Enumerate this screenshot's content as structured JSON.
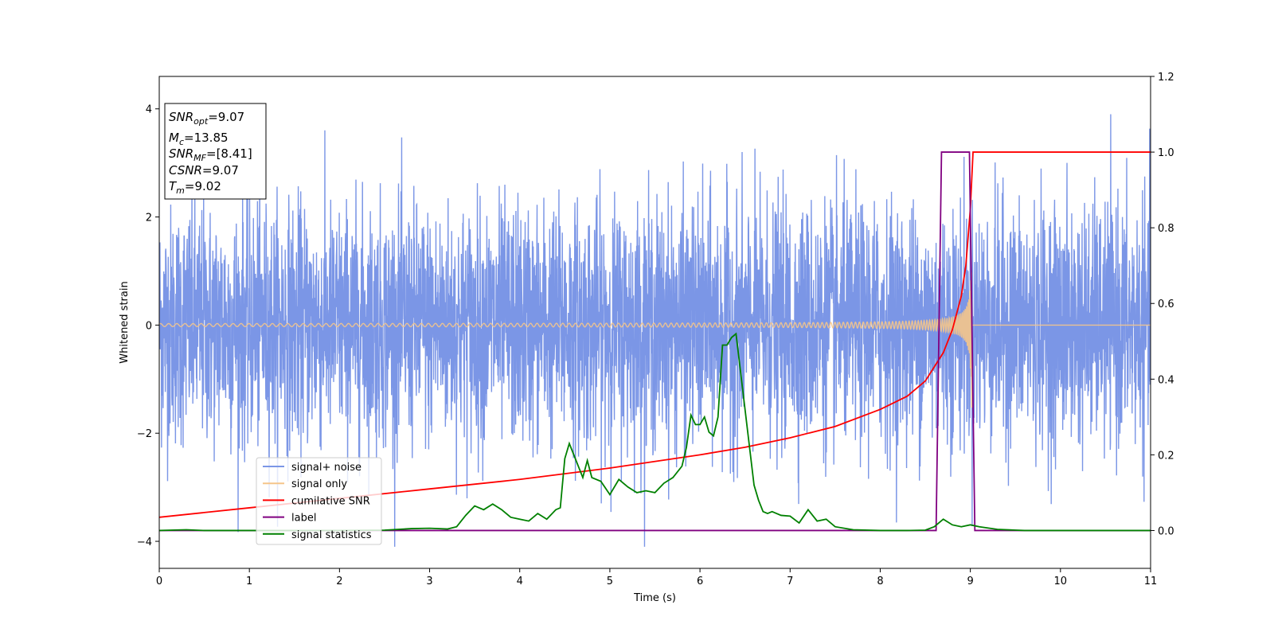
{
  "chart_data": {
    "type": "line",
    "xlabel": "Time (s)",
    "ylabel": "Whitened strain",
    "xlim": [
      0,
      11
    ],
    "ylim": [
      -4.5,
      4.6
    ],
    "y2lim": [
      -0.1,
      1.2
    ],
    "x_ticks": [
      0,
      1,
      2,
      3,
      4,
      5,
      6,
      7,
      8,
      9,
      10,
      11
    ],
    "x_tick_labels": [
      "0",
      "1",
      "2",
      "3",
      "4",
      "5",
      "6",
      "7",
      "8",
      "9",
      "10",
      "11"
    ],
    "y_ticks": [
      -4,
      -2,
      0,
      2,
      4
    ],
    "y_tick_labels": [
      "−4",
      "−2",
      "0",
      "2",
      "4"
    ],
    "y2_ticks": [
      0.0,
      0.2,
      0.4,
      0.6,
      0.8,
      1.0,
      1.2
    ],
    "y2_tick_labels": [
      "0.0",
      "0.2",
      "0.4",
      "0.6",
      "0.8",
      "1.0",
      "1.2"
    ],
    "grid": false,
    "legend_position": "bottom-left",
    "info_box": {
      "position": "top-left",
      "lines": [
        {
          "sym": "SNR",
          "sub": "opt",
          "rest": "=9.07"
        },
        {
          "sym": "M",
          "sub": "c",
          "rest": "=13.85"
        },
        {
          "sym": "SNR",
          "sub": "MF",
          "rest": "=[8.41]"
        },
        {
          "sym": "CSNR",
          "sub": "",
          "rest": "=9.07"
        },
        {
          "sym": "T",
          "sub": "m",
          "rest": "=9.02"
        }
      ]
    },
    "series": [
      {
        "name": "signal+ noise",
        "axis": "left",
        "color": "#7b96e6",
        "description_values": {
          "std": 1.1,
          "typical_peak": 2.8,
          "max_peak": 3.9,
          "min_trough": -4.1
        }
      },
      {
        "name": "signal only",
        "axis": "left",
        "color": "#f5c58a",
        "chirp": {
          "start": 0,
          "end": 9.02,
          "f0": 8.0,
          "amp_start": 0.02,
          "amp_end_envelope_at_9.0": 1.3
        }
      },
      {
        "name": "cumilative SNR",
        "axis": "right",
        "color": "#ff0000",
        "x": [
          0,
          1,
          2,
          3,
          4,
          5,
          6,
          6.5,
          7,
          7.5,
          8,
          8.3,
          8.5,
          8.7,
          8.8,
          8.9,
          8.95,
          9.0,
          9.02,
          9.03,
          11
        ],
        "y": [
          0.035,
          0.06,
          0.085,
          0.11,
          0.135,
          0.165,
          0.2,
          0.22,
          0.245,
          0.275,
          0.32,
          0.355,
          0.395,
          0.47,
          0.53,
          0.62,
          0.7,
          0.85,
          0.95,
          1.0,
          1.0
        ]
      },
      {
        "name": "label",
        "axis": "right",
        "color": "#800080",
        "x": [
          0,
          8.62,
          8.68,
          8.99,
          9.05,
          11
        ],
        "y": [
          0,
          0,
          1,
          1,
          0,
          0
        ]
      },
      {
        "name": "signal statistics",
        "axis": "right",
        "color": "#008000",
        "x": [
          0,
          0.3,
          0.5,
          1,
          2,
          2.5,
          2.8,
          3.0,
          3.2,
          3.3,
          3.4,
          3.5,
          3.6,
          3.7,
          3.8,
          3.9,
          4.0,
          4.1,
          4.2,
          4.3,
          4.4,
          4.45,
          4.5,
          4.55,
          4.6,
          4.7,
          4.75,
          4.8,
          4.9,
          5.0,
          5.1,
          5.2,
          5.3,
          5.4,
          5.5,
          5.6,
          5.7,
          5.8,
          5.85,
          5.9,
          5.95,
          6.0,
          6.05,
          6.1,
          6.15,
          6.2,
          6.25,
          6.3,
          6.35,
          6.4,
          6.45,
          6.5,
          6.55,
          6.6,
          6.65,
          6.7,
          6.75,
          6.8,
          6.9,
          7.0,
          7.1,
          7.2,
          7.3,
          7.4,
          7.5,
          7.7,
          8.0,
          8.3,
          8.5,
          8.6,
          8.65,
          8.7,
          8.8,
          8.9,
          9.0,
          9.1,
          9.3,
          9.6,
          10,
          11
        ],
        "y": [
          0.0,
          0.002,
          0.0,
          0.0,
          0.0,
          0.001,
          0.005,
          0.006,
          0.004,
          0.01,
          0.04,
          0.065,
          0.055,
          0.07,
          0.055,
          0.035,
          0.03,
          0.025,
          0.045,
          0.03,
          0.055,
          0.06,
          0.19,
          0.23,
          0.2,
          0.14,
          0.185,
          0.14,
          0.13,
          0.095,
          0.135,
          0.115,
          0.1,
          0.105,
          0.1,
          0.125,
          0.14,
          0.17,
          0.22,
          0.305,
          0.28,
          0.28,
          0.3,
          0.26,
          0.25,
          0.3,
          0.49,
          0.49,
          0.51,
          0.52,
          0.42,
          0.32,
          0.22,
          0.12,
          0.08,
          0.05,
          0.045,
          0.05,
          0.04,
          0.038,
          0.02,
          0.055,
          0.025,
          0.03,
          0.01,
          0.002,
          0.0,
          0.0,
          0.001,
          0.01,
          0.02,
          0.03,
          0.015,
          0.01,
          0.015,
          0.01,
          0.003,
          0.0,
          0.0,
          0.0
        ]
      }
    ]
  }
}
